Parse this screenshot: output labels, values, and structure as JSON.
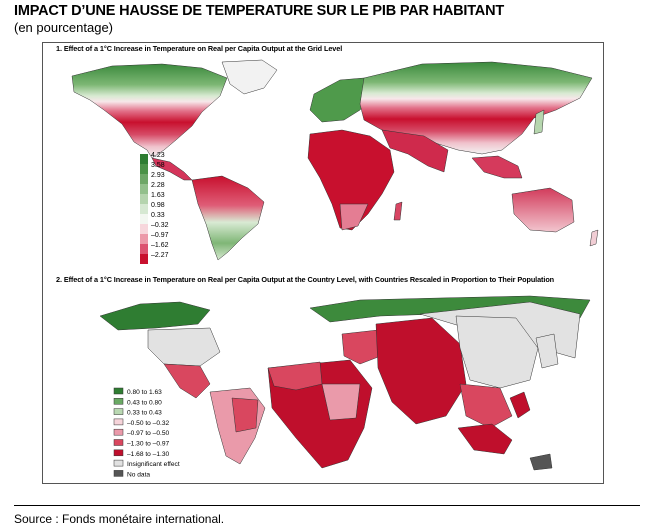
{
  "header": {
    "title": "IMPACT D’UNE HAUSSE DE TEMPERATURE SUR LE PIB PAR HABITANT",
    "subtitle": "(en pourcentage)"
  },
  "panel1": {
    "title": "1. Effect of a 1°C Increase in Temperature on Real per Capita Output at the Grid Level",
    "legend": [
      "4.23",
      "3.58",
      "2.93",
      "2.28",
      "1.63",
      "0.98",
      "0.33",
      "–0.32",
      "–0.97",
      "–1.62",
      "–2.27"
    ],
    "legend_colors": [
      "#2e7d32",
      "#4b9247",
      "#6ea767",
      "#93c08c",
      "#b5d4ae",
      "#d6e8d2",
      "#f3f7f1",
      "#f7d7dc",
      "#ec9aa9",
      "#dc5370",
      "#c8102e"
    ]
  },
  "panel2": {
    "title": "2. Effect of a 1°C Increase in Temperature on Real per Capita Output at the Country Level, with Countries Rescaled in Proportion to Their Population",
    "legend": [
      {
        "label": "0.80 to 1.63",
        "color": "#2f7d32"
      },
      {
        "label": "0.43 to 0.80",
        "color": "#6aa964"
      },
      {
        "label": "0.33 to 0.43",
        "color": "#b9d8b2"
      },
      {
        "label": "–0.50 to –0.32",
        "color": "#f6d4da"
      },
      {
        "label": "–0.97 to –0.50",
        "color": "#ea9aaa"
      },
      {
        "label": "–1.30 to –0.97",
        "color": "#d9475f"
      },
      {
        "label": "–1.68 to –1.30",
        "color": "#bf0f2c"
      },
      {
        "label": "Insignificant effect",
        "color": "#e2e2e2"
      },
      {
        "label": "No data",
        "color": "#555555"
      }
    ]
  },
  "footer": {
    "source": "Source : Fonds monétaire international."
  }
}
